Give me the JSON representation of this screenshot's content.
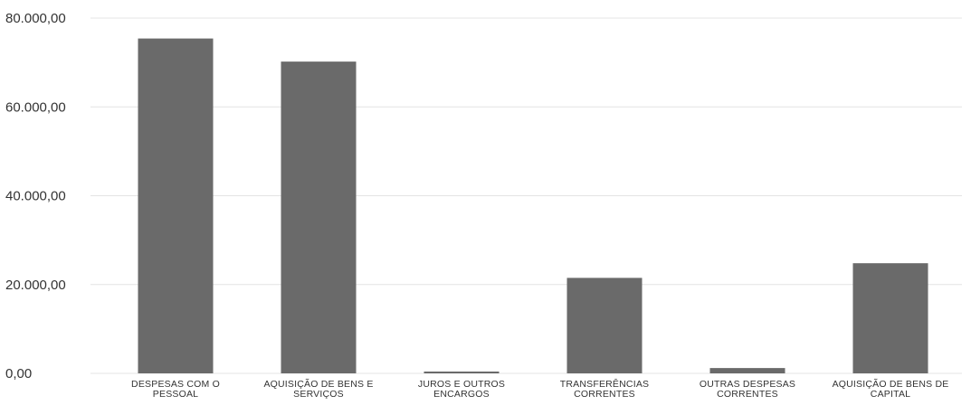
{
  "chart_data": {
    "type": "bar",
    "title": "",
    "xlabel": "",
    "ylabel": "",
    "ylim": [
      0,
      80000
    ],
    "yticks": [
      0,
      20000,
      40000,
      60000,
      80000
    ],
    "ytick_labels": [
      "0,00",
      "20.000,00",
      "40.000,00",
      "60.000,00",
      "80.000,00"
    ],
    "grid": true,
    "bar_color": "#6a6a6a",
    "categories": [
      [
        "DESPESAS COM O",
        "PESSOAL"
      ],
      [
        "AQUISIÇÃO DE BENS E",
        "SERVIÇOS"
      ],
      [
        "JUROS E OUTROS",
        "ENCARGOS"
      ],
      [
        "TRANSFERÊNCIAS",
        "CORRENTES"
      ],
      [
        "OUTRAS DESPESAS",
        "CORRENTES"
      ],
      [
        "AQUISIÇÃO DE BENS DE",
        "CAPITAL"
      ]
    ],
    "values": [
      75400,
      70200,
      300,
      21500,
      1200,
      24800
    ]
  }
}
